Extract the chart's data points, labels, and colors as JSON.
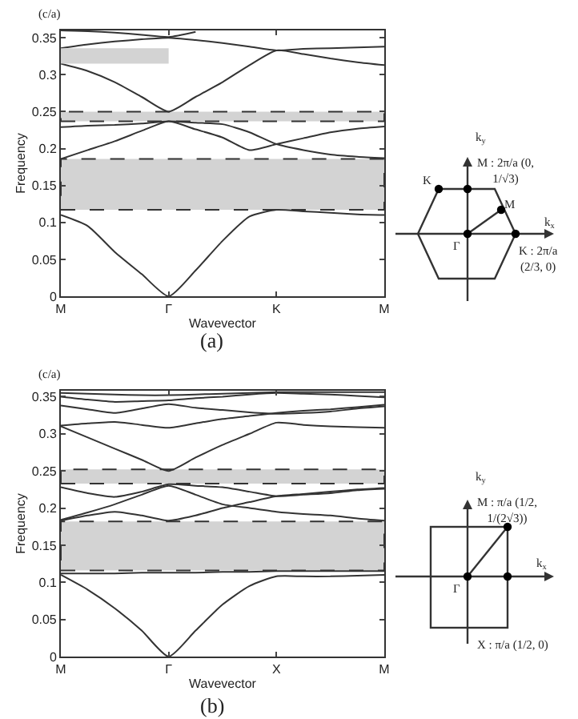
{
  "chart_data": [
    {
      "type": "line",
      "xlabel": "Wavevector",
      "ylabel": "Frequency",
      "categories": [
        "M",
        null,
        null,
        null,
        "Γ",
        null,
        null,
        null,
        "K",
        null,
        null,
        null,
        "M"
      ],
      "ylim": [
        0,
        0.36
      ],
      "yticks": [
        0,
        0.05,
        0.1,
        0.15,
        0.2,
        0.25,
        0.3,
        0.35
      ],
      "grid": false,
      "marker": "none",
      "line_style": "solid",
      "annotations": [
        "(c/a)",
        "(a)",
        "K",
        "M : 2π/a (0, 1/√3)",
        "M",
        "Γ",
        "K : 2π/a (2/3, 0)",
        "k$_{y}$",
        "k$_{x}$"
      ],
      "bands": [
        {
          "axis": "y",
          "from": 0.117,
          "to": 0.186,
          "color": "#d3d3d3"
        },
        {
          "axis": "y",
          "from": 0.237,
          "to": 0.25,
          "color": "#d3d3d3"
        }
      ],
      "series": [
        {
          "color": "#333333",
          "values": [
            0.11,
            0.095,
            0.06,
            0.03,
            0,
            0.035,
            0.075,
            0.108,
            0.117,
            0.115,
            0.113,
            0.111,
            0.11
          ]
        },
        {
          "color": "#333333",
          "values": [
            0.186,
            0.198,
            0.21,
            0.224,
            0.237,
            0.226,
            0.215,
            0.198,
            0.206,
            0.214,
            0.222,
            0.227,
            0.23
          ]
        },
        {
          "color": "#333333",
          "values": [
            0.229,
            0.231,
            0.232,
            0.234,
            0.237,
            0.235,
            0.233,
            0.222,
            0.206,
            0.198,
            0.192,
            0.189,
            0.187
          ]
        },
        {
          "color": "#333333",
          "values": [
            0.315,
            0.305,
            0.29,
            0.27,
            0.25,
            0.27,
            0.29,
            0.313,
            0.333,
            0.328,
            0.322,
            0.317,
            0.313
          ]
        },
        {
          "color": "#333333",
          "values": [
            0.336,
            0.341,
            0.345,
            0.348,
            0.35,
            0.347,
            0.343,
            0.338,
            0.333,
            0.335,
            0.336,
            0.337,
            0.338
          ]
        },
        {
          "color": "#333333",
          "values": [
            0.36,
            0.359,
            0.357,
            0.354,
            0.351,
            0.358,
            null,
            null,
            null,
            null,
            null,
            null,
            null
          ]
        },
        {
          "type": "area",
          "color": "#d3d3d3",
          "lower": [
            0.315,
            0.315,
            0.315,
            0.315,
            0.315,
            null,
            null,
            null,
            null,
            null,
            null,
            null,
            null
          ],
          "upper": [
            0.336,
            0.336,
            0.336,
            0.336,
            0.336,
            null,
            null,
            null,
            null,
            null,
            null,
            null,
            null
          ],
          "values": [
            null,
            null,
            null,
            null,
            null,
            null,
            null,
            null,
            null,
            null,
            null,
            null,
            null
          ]
        }
      ]
    },
    {
      "type": "line",
      "xlabel": "Wavevector",
      "ylabel": "Frequency",
      "categories": [
        "M",
        null,
        null,
        null,
        "Γ",
        null,
        null,
        null,
        "X",
        null,
        null,
        null,
        "M"
      ],
      "ylim": [
        0,
        0.358
      ],
      "yticks": [
        0,
        0.05,
        0.1,
        0.15,
        0.2,
        0.25,
        0.3,
        0.35
      ],
      "grid": false,
      "marker": "none",
      "line_style": "solid",
      "annotations": [
        "(c/a)",
        "(b)",
        "M : π/a (1/2, 1/(2√3))",
        "Γ",
        "X : π/a (1/2, 0)",
        "k$_{y}$",
        "k$_{x}$"
      ],
      "bands": [
        {
          "axis": "y",
          "from": 0.116,
          "to": 0.182,
          "color": "#d3d3d3"
        },
        {
          "axis": "y",
          "from": 0.233,
          "to": 0.252,
          "color": "#d3d3d3"
        }
      ],
      "series": [
        {
          "color": "#333333",
          "values": [
            0.11,
            0.09,
            0.065,
            0.035,
            0,
            0.035,
            0.07,
            0.095,
            0.108,
            0.108,
            0.108,
            0.109,
            0.11
          ]
        },
        {
          "color": "#333333",
          "values": [
            0.112,
            0.112,
            0.112,
            0.113,
            0.113,
            0.113,
            0.114,
            0.114,
            0.115,
            0.115,
            0.115,
            0.115,
            0.115
          ]
        },
        {
          "color": "#333333",
          "values": [
            0.183,
            0.19,
            0.195,
            0.19,
            0.183,
            0.19,
            0.2,
            0.208,
            0.216,
            0.219,
            0.222,
            0.225,
            0.227
          ]
        },
        {
          "color": "#333333",
          "values": [
            0.184,
            0.194,
            0.205,
            0.218,
            0.23,
            0.218,
            0.205,
            0.2,
            0.195,
            0.192,
            0.19,
            0.186,
            0.183
          ]
        },
        {
          "color": "#333333",
          "values": [
            0.228,
            0.22,
            0.215,
            0.222,
            0.232,
            0.23,
            0.228,
            0.222,
            0.216,
            0.218,
            0.22,
            0.224,
            0.226
          ]
        },
        {
          "color": "#333333",
          "values": [
            0.31,
            0.295,
            0.28,
            0.265,
            0.25,
            0.268,
            0.285,
            0.3,
            0.315,
            0.312,
            0.31,
            0.309,
            0.308
          ]
        },
        {
          "color": "#333333",
          "values": [
            0.311,
            0.314,
            0.316,
            0.312,
            0.308,
            0.314,
            0.32,
            0.324,
            0.328,
            0.331,
            0.333,
            0.336,
            0.339
          ]
        },
        {
          "color": "#333333",
          "values": [
            0.338,
            0.333,
            0.328,
            0.334,
            0.34,
            0.335,
            0.332,
            0.329,
            0.327,
            0.328,
            0.33,
            0.334,
            0.337
          ]
        },
        {
          "color": "#333333",
          "values": [
            0.35,
            0.346,
            0.343,
            0.344,
            0.345,
            0.348,
            0.35,
            0.353,
            0.355,
            0.354,
            0.353,
            0.351,
            0.349
          ]
        },
        {
          "color": "#333333",
          "values": [
            0.355,
            0.354,
            0.353,
            0.352,
            0.352,
            0.353,
            0.354,
            0.355,
            0.356,
            0.356,
            0.356,
            0.356,
            0.356
          ]
        }
      ]
    }
  ]
}
